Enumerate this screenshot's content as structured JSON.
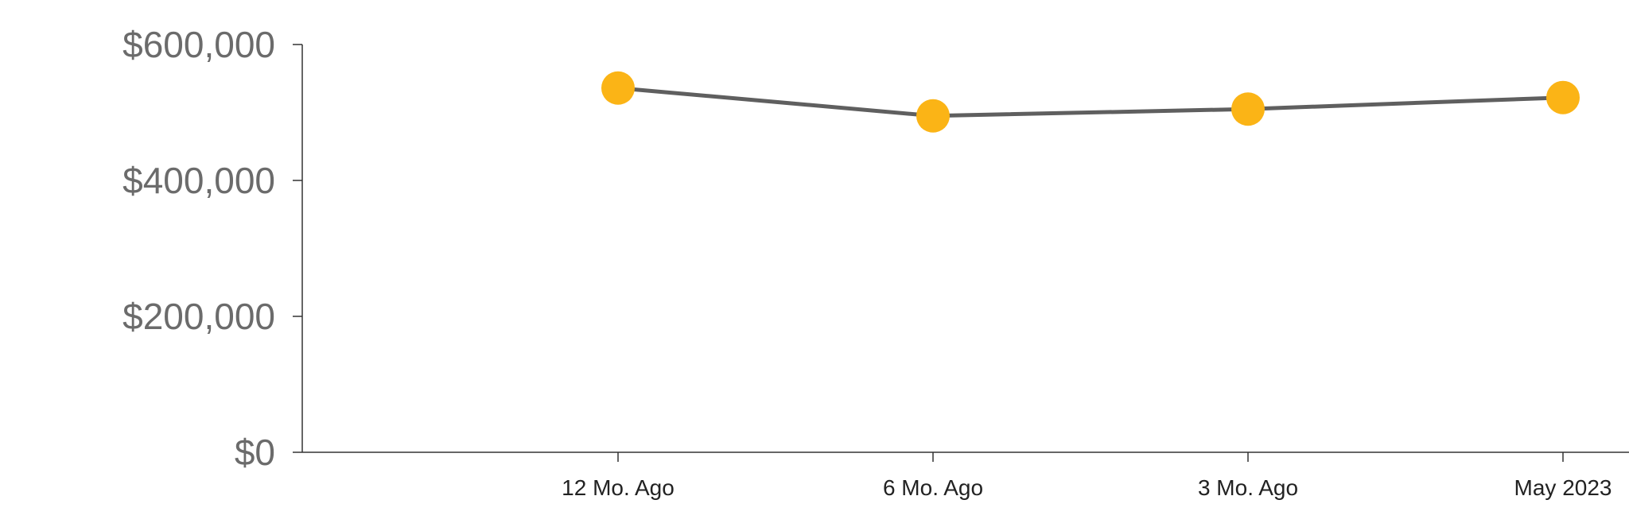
{
  "chart_data": {
    "type": "line",
    "title": "",
    "xlabel": "",
    "ylabel": "",
    "categories": [
      "12 Mo. Ago",
      "6 Mo. Ago",
      "3 Mo. Ago",
      "May 2023"
    ],
    "series": [
      {
        "values": [
          536000,
          495000,
          505000,
          522000
        ]
      }
    ],
    "ylim": [
      0,
      600000
    ],
    "y_ticks": [
      0,
      200000,
      400000,
      600000
    ],
    "y_tick_labels": [
      "$0",
      "$200,000",
      "$400,000",
      "$600,000"
    ],
    "grid": false,
    "legend": "none",
    "colors": {
      "line": "#5f5f5f",
      "marker": "#fbb416"
    }
  }
}
